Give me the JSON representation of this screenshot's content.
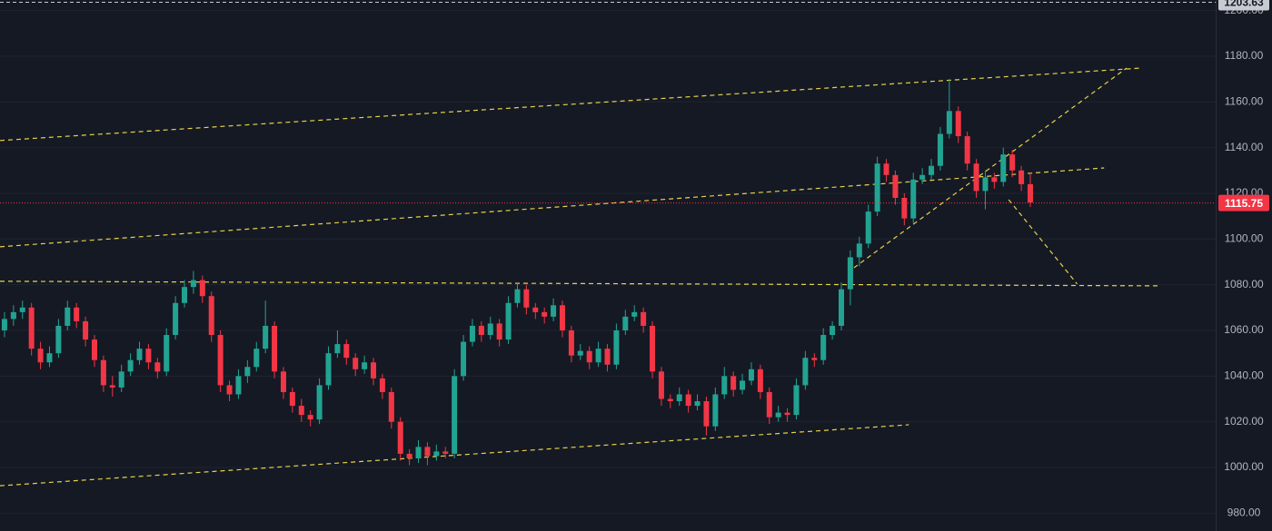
{
  "chart_data": {
    "type": "candlestick",
    "up_color": "#22a392",
    "down_color": "#f23645",
    "xlim": [
      -0.5,
      134.6
    ],
    "ylim": [
      972.2,
      1204.6
    ],
    "yticks": [
      {
        "value": 980,
        "label": "980.00"
      },
      {
        "value": 1000,
        "label": "1000.00"
      },
      {
        "value": 1020,
        "label": "1020.00"
      },
      {
        "value": 1040,
        "label": "1040.00"
      },
      {
        "value": 1060,
        "label": "1060.00"
      },
      {
        "value": 1080,
        "label": "1080.00"
      },
      {
        "value": 1100,
        "label": "1100.00"
      },
      {
        "value": 1120,
        "label": "1120.00"
      },
      {
        "value": 1140,
        "label": "1140.00"
      },
      {
        "value": 1160,
        "label": "1160.00"
      },
      {
        "value": 1180,
        "label": "1180.00"
      },
      {
        "value": 1200,
        "label": "1200.00"
      }
    ],
    "grid": true,
    "values": [
      [
        1060,
        1068,
        1057,
        1065
      ],
      [
        1065,
        1071,
        1062,
        1068
      ],
      [
        1068,
        1073,
        1065,
        1070
      ],
      [
        1070,
        1072,
        1049,
        1052
      ],
      [
        1052,
        1055,
        1043,
        1046
      ],
      [
        1046,
        1053,
        1044,
        1050
      ],
      [
        1050,
        1065,
        1048,
        1062
      ],
      [
        1062,
        1073,
        1060,
        1070
      ],
      [
        1070,
        1072,
        1061,
        1064
      ],
      [
        1064,
        1066,
        1053,
        1056
      ],
      [
        1056,
        1058,
        1044,
        1047
      ],
      [
        1047,
        1049,
        1033,
        1036
      ],
      [
        1036,
        1040,
        1031,
        1035
      ],
      [
        1035,
        1045,
        1033,
        1042
      ],
      [
        1042,
        1050,
        1040,
        1047
      ],
      [
        1047,
        1055,
        1045,
        1052
      ],
      [
        1052,
        1054,
        1043,
        1046
      ],
      [
        1046,
        1048,
        1039,
        1042
      ],
      [
        1042,
        1061,
        1040,
        1058
      ],
      [
        1058,
        1075,
        1056,
        1072
      ],
      [
        1072,
        1082,
        1070,
        1079
      ],
      [
        1079,
        1086,
        1076,
        1082
      ],
      [
        1082,
        1084,
        1072,
        1075
      ],
      [
        1075,
        1077,
        1055,
        1058
      ],
      [
        1058,
        1060,
        1033,
        1036
      ],
      [
        1036,
        1038,
        1029,
        1032
      ],
      [
        1032,
        1043,
        1030,
        1040
      ],
      [
        1040,
        1047,
        1037,
        1044
      ],
      [
        1044,
        1055,
        1042,
        1052
      ],
      [
        1052,
        1073,
        1050,
        1062
      ],
      [
        1062,
        1064,
        1039,
        1042
      ],
      [
        1042,
        1044,
        1030,
        1033
      ],
      [
        1033,
        1035,
        1024,
        1027
      ],
      [
        1027,
        1030,
        1020,
        1023
      ],
      [
        1023,
        1025,
        1018,
        1021
      ],
      [
        1021,
        1039,
        1019,
        1036
      ],
      [
        1036,
        1053,
        1034,
        1050
      ],
      [
        1050,
        1060,
        1048,
        1054
      ],
      [
        1054,
        1056,
        1045,
        1048
      ],
      [
        1048,
        1050,
        1040,
        1043
      ],
      [
        1043,
        1049,
        1041,
        1046
      ],
      [
        1046,
        1048,
        1036,
        1039
      ],
      [
        1039,
        1041,
        1030,
        1033
      ],
      [
        1033,
        1035,
        1017,
        1020
      ],
      [
        1020,
        1022,
        1003,
        1006
      ],
      [
        1006,
        1008,
        1001,
        1004
      ],
      [
        1004,
        1012,
        1002,
        1009
      ],
      [
        1009,
        1011,
        1001,
        1005
      ],
      [
        1005,
        1010,
        1003,
        1007
      ],
      [
        1007,
        1009,
        1004,
        1006
      ],
      [
        1006,
        1043,
        1004,
        1040
      ],
      [
        1040,
        1058,
        1038,
        1055
      ],
      [
        1055,
        1065,
        1053,
        1062
      ],
      [
        1062,
        1064,
        1055,
        1058
      ],
      [
        1058,
        1066,
        1056,
        1063
      ],
      [
        1063,
        1065,
        1053,
        1056
      ],
      [
        1056,
        1075,
        1054,
        1072
      ],
      [
        1072,
        1081,
        1070,
        1078
      ],
      [
        1078,
        1080,
        1067,
        1070
      ],
      [
        1070,
        1072,
        1065,
        1068
      ],
      [
        1068,
        1070,
        1063,
        1066
      ],
      [
        1066,
        1074,
        1064,
        1071
      ],
      [
        1071,
        1073,
        1057,
        1060
      ],
      [
        1060,
        1062,
        1046,
        1049
      ],
      [
        1049,
        1054,
        1047,
        1051
      ],
      [
        1051,
        1053,
        1043,
        1046
      ],
      [
        1046,
        1055,
        1044,
        1052
      ],
      [
        1052,
        1054,
        1042,
        1045
      ],
      [
        1045,
        1063,
        1043,
        1060
      ],
      [
        1060,
        1069,
        1058,
        1066
      ],
      [
        1066,
        1071,
        1064,
        1068
      ],
      [
        1068,
        1070,
        1059,
        1062
      ],
      [
        1062,
        1064,
        1039,
        1042
      ],
      [
        1042,
        1044,
        1027,
        1030
      ],
      [
        1030,
        1032,
        1026,
        1029
      ],
      [
        1029,
        1035,
        1027,
        1032
      ],
      [
        1032,
        1034,
        1024,
        1027
      ],
      [
        1027,
        1032,
        1025,
        1029
      ],
      [
        1029,
        1031,
        1014,
        1018
      ],
      [
        1018,
        1035,
        1016,
        1032
      ],
      [
        1032,
        1044,
        1030,
        1040
      ],
      [
        1040,
        1042,
        1031,
        1034
      ],
      [
        1034,
        1041,
        1032,
        1038
      ],
      [
        1038,
        1046,
        1036,
        1043
      ],
      [
        1043,
        1045,
        1030,
        1033
      ],
      [
        1033,
        1035,
        1019,
        1022
      ],
      [
        1022,
        1027,
        1020,
        1024
      ],
      [
        1024,
        1026,
        1020,
        1023
      ],
      [
        1023,
        1039,
        1021,
        1036
      ],
      [
        1036,
        1051,
        1034,
        1048
      ],
      [
        1048,
        1050,
        1044,
        1047
      ],
      [
        1047,
        1061,
        1045,
        1058
      ],
      [
        1058,
        1064,
        1056,
        1062
      ],
      [
        1062,
        1081,
        1060,
        1078
      ],
      [
        1078,
        1095,
        1071,
        1092
      ],
      [
        1092,
        1101,
        1088,
        1098
      ],
      [
        1098,
        1115,
        1096,
        1112
      ],
      [
        1112,
        1136,
        1110,
        1133
      ],
      [
        1133,
        1135,
        1125,
        1128
      ],
      [
        1128,
        1130,
        1115,
        1118
      ],
      [
        1118,
        1120,
        1106,
        1109
      ],
      [
        1109,
        1129,
        1107,
        1126
      ],
      [
        1126,
        1131,
        1124,
        1128
      ],
      [
        1128,
        1135,
        1126,
        1132
      ],
      [
        1132,
        1149,
        1130,
        1146
      ],
      [
        1146,
        1170,
        1144,
        1156
      ],
      [
        1156,
        1158,
        1142,
        1145
      ],
      [
        1145,
        1147,
        1130,
        1133
      ],
      [
        1133,
        1135,
        1118,
        1121
      ],
      [
        1121,
        1130,
        1113,
        1127
      ],
      [
        1127,
        1129,
        1122,
        1125
      ],
      [
        1125,
        1140,
        1123,
        1137
      ],
      [
        1137,
        1139,
        1127,
        1130
      ],
      [
        1130,
        1132,
        1121,
        1124
      ],
      [
        1124,
        1129,
        1114,
        1116
      ]
    ],
    "trendline_color": "#e6d24a",
    "trendlines": [
      {
        "x": [
          -0.5,
          126.3
        ],
        "y": [
          1143.1,
          1174.8
        ]
      },
      {
        "x": [
          -0.5,
          122.2
        ],
        "y": [
          1096.6,
          1131.1
        ]
      },
      {
        "x": [
          -0.5,
          100.5
        ],
        "y": [
          992.0,
          1018.7
        ]
      },
      {
        "x": [
          -0.5,
          128.3
        ],
        "y": [
          1081.5,
          1079.5
        ]
      },
      {
        "x": [
          94.4,
          124.7
        ],
        "y": [
          1087.4,
          1174.8
        ]
      },
      {
        "x": [
          111.6,
          119.2
        ],
        "y": [
          1117.2,
          1080.3
        ]
      }
    ],
    "price_lines": [
      {
        "value": 1203.63,
        "color": "#c8cad1",
        "text_color": "#131722",
        "dash": "4 3"
      },
      {
        "value": 1115.75,
        "color": "#f23645",
        "text_color": "#ffffff",
        "dash": "1 2"
      }
    ]
  }
}
